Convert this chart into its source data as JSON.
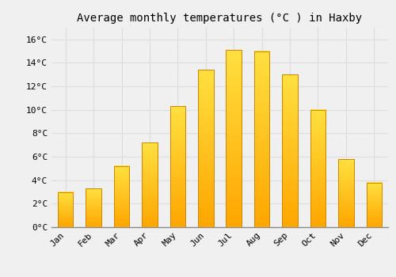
{
  "title": "Average monthly temperatures (°C ) in Haxby",
  "months": [
    "Jan",
    "Feb",
    "Mar",
    "Apr",
    "May",
    "Jun",
    "Jul",
    "Aug",
    "Sep",
    "Oct",
    "Nov",
    "Dec"
  ],
  "temperatures": [
    3.0,
    3.3,
    5.2,
    7.2,
    10.3,
    13.4,
    15.1,
    15.0,
    13.0,
    10.0,
    5.8,
    3.8
  ],
  "bar_color_bottom": "#FFA500",
  "bar_color_top": "#FFD700",
  "bar_edge_color": "#CC8800",
  "background_color": "#F0F0F0",
  "grid_color": "#DDDDDD",
  "ylim": [
    0,
    17
  ],
  "yticks": [
    0,
    2,
    4,
    6,
    8,
    10,
    12,
    14,
    16
  ],
  "ytick_labels": [
    "0°C",
    "2°C",
    "4°C",
    "6°C",
    "8°C",
    "10°C",
    "12°C",
    "14°C",
    "16°C"
  ],
  "title_fontsize": 10,
  "tick_fontsize": 8,
  "bar_width": 0.55,
  "figsize": [
    5.0,
    3.5
  ],
  "dpi": 100
}
